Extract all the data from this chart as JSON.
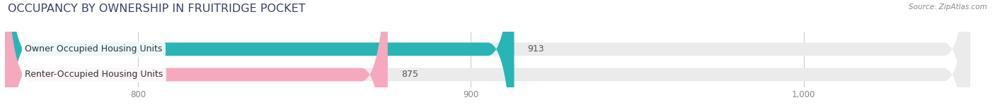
{
  "title": "OCCUPANCY BY OWNERSHIP IN FRUITRIDGE POCKET",
  "source": "Source: ZipAtlas.com",
  "categories": [
    "Owner Occupied Housing Units",
    "Renter-Occupied Housing Units"
  ],
  "values": [
    913,
    875
  ],
  "bar_colors": [
    "#29b5b5",
    "#f5a8be"
  ],
  "background_bar_color": "#ebebeb",
  "xlim_min": 760,
  "xlim_max": 1050,
  "xticks": [
    800,
    900,
    1000
  ],
  "xtick_labels": [
    "800",
    "900",
    "1,000"
  ],
  "title_fontsize": 11.5,
  "label_fontsize": 9,
  "value_fontsize": 9,
  "bar_height": 0.52,
  "background_color": "#ffffff",
  "title_color": "#3a3f6e",
  "source_color": "#888888",
  "tick_color": "#888888",
  "value_color": "#555555",
  "label_text_color": "#333333"
}
